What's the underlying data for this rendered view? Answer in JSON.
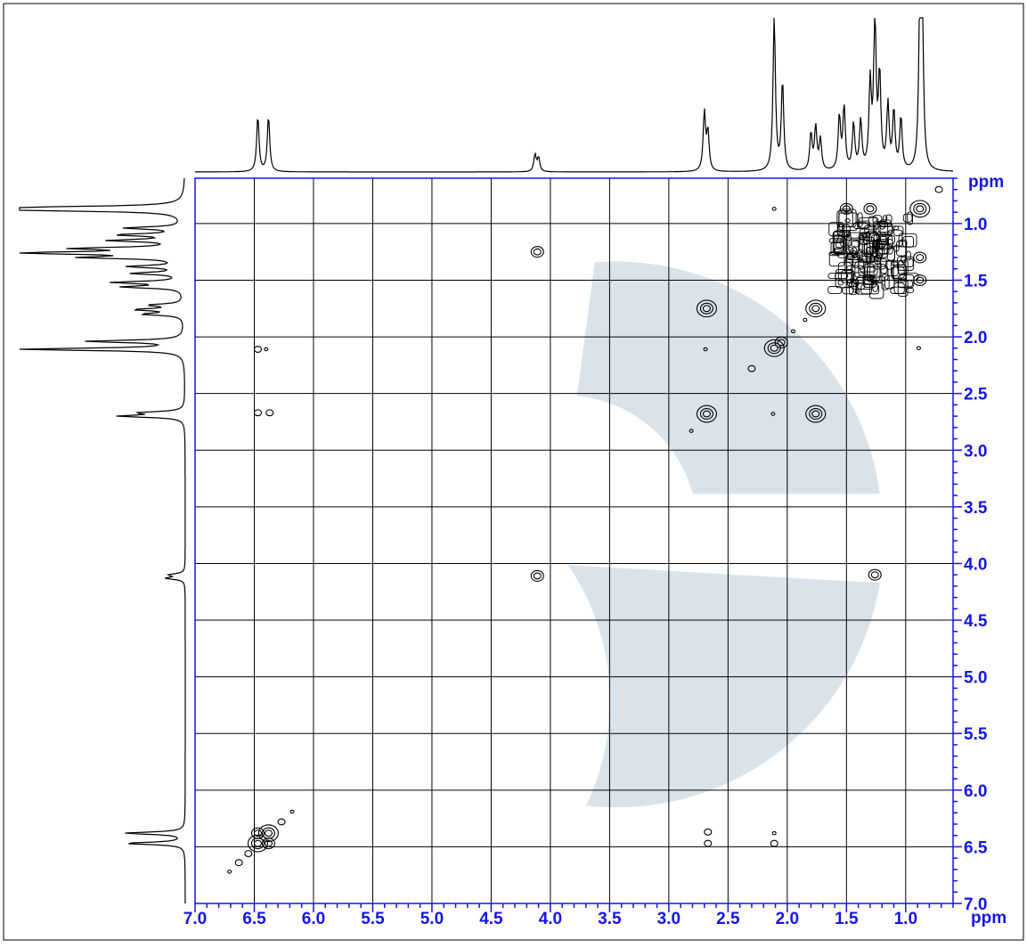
{
  "chart_data": {
    "type": "scatter",
    "title": "",
    "x_unit_label": "ppm",
    "y_unit_label": "ppm",
    "x_axis": {
      "range": [
        7.0,
        0.6
      ],
      "reversed": true,
      "ticks": [
        "7.0",
        "6.5",
        "6.0",
        "5.5",
        "5.0",
        "4.5",
        "4.0",
        "3.5",
        "3.0",
        "2.5",
        "2.0",
        "1.5",
        "1.0"
      ]
    },
    "y_axis": {
      "range": [
        0.6,
        7.0
      ],
      "reversed": true,
      "ticks": [
        "1.0",
        "1.5",
        "2.0",
        "2.5",
        "3.0",
        "3.5",
        "4.0",
        "4.5",
        "5.0",
        "5.5",
        "6.0",
        "6.5",
        "7.0"
      ]
    },
    "grid": true,
    "axis_color": "#1414e6",
    "watermark_colors": [
      "#dbe3ea",
      "#f8f4dc"
    ],
    "projection_peaks": [
      {
        "ppm": 6.47,
        "height": 0.36
      },
      {
        "ppm": 6.38,
        "height": 0.36
      },
      {
        "ppm": 4.13,
        "height": 0.11
      },
      {
        "ppm": 4.1,
        "height": 0.09
      },
      {
        "ppm": 2.7,
        "height": 0.38
      },
      {
        "ppm": 2.67,
        "height": 0.25
      },
      {
        "ppm": 2.11,
        "height": 1.0
      },
      {
        "ppm": 2.04,
        "height": 0.58
      },
      {
        "ppm": 1.8,
        "height": 0.24
      },
      {
        "ppm": 1.76,
        "height": 0.28
      },
      {
        "ppm": 1.72,
        "height": 0.2
      },
      {
        "ppm": 1.56,
        "height": 0.35
      },
      {
        "ppm": 1.52,
        "height": 0.41
      },
      {
        "ppm": 1.44,
        "height": 0.3
      },
      {
        "ppm": 1.38,
        "height": 0.32
      },
      {
        "ppm": 1.3,
        "height": 0.55
      },
      {
        "ppm": 1.26,
        "height": 1.0
      },
      {
        "ppm": 1.22,
        "height": 0.6
      },
      {
        "ppm": 1.15,
        "height": 0.42
      },
      {
        "ppm": 1.1,
        "height": 0.38
      },
      {
        "ppm": 1.04,
        "height": 0.34
      },
      {
        "ppm": 0.88,
        "height": 1.0
      },
      {
        "ppm": 0.86,
        "height": 0.95
      }
    ],
    "cross_peaks": [
      {
        "x": 6.47,
        "y": 6.47,
        "size": "large"
      },
      {
        "x": 6.38,
        "y": 6.38,
        "size": "large"
      },
      {
        "x": 6.47,
        "y": 6.38,
        "size": "medium"
      },
      {
        "x": 6.38,
        "y": 6.47,
        "size": "medium"
      },
      {
        "x": 6.27,
        "y": 6.28,
        "size": "small"
      },
      {
        "x": 6.18,
        "y": 6.19,
        "size": "tiny"
      },
      {
        "x": 6.55,
        "y": 6.56,
        "size": "small"
      },
      {
        "x": 6.63,
        "y": 6.64,
        "size": "small"
      },
      {
        "x": 6.71,
        "y": 6.72,
        "size": "tiny"
      },
      {
        "x": 6.47,
        "y": 2.11,
        "size": "small"
      },
      {
        "x": 6.4,
        "y": 2.11,
        "size": "tiny"
      },
      {
        "x": 6.47,
        "y": 2.67,
        "size": "small"
      },
      {
        "x": 6.37,
        "y": 2.67,
        "size": "small"
      },
      {
        "x": 2.67,
        "y": 6.37,
        "size": "small"
      },
      {
        "x": 2.67,
        "y": 6.47,
        "size": "small"
      },
      {
        "x": 2.11,
        "y": 6.38,
        "size": "tiny"
      },
      {
        "x": 2.11,
        "y": 6.47,
        "size": "small"
      },
      {
        "x": 4.11,
        "y": 1.25,
        "size": "medium"
      },
      {
        "x": 4.11,
        "y": 4.11,
        "size": "medium"
      },
      {
        "x": 1.26,
        "y": 4.1,
        "size": "medium"
      },
      {
        "x": 2.68,
        "y": 1.75,
        "size": "large"
      },
      {
        "x": 2.68,
        "y": 2.68,
        "size": "large"
      },
      {
        "x": 1.76,
        "y": 2.68,
        "size": "large"
      },
      {
        "x": 1.76,
        "y": 1.75,
        "size": "large"
      },
      {
        "x": 2.11,
        "y": 2.1,
        "size": "large"
      },
      {
        "x": 2.05,
        "y": 2.05,
        "size": "medium"
      },
      {
        "x": 2.3,
        "y": 2.28,
        "size": "small"
      },
      {
        "x": 2.69,
        "y": 2.11,
        "size": "tiny"
      },
      {
        "x": 2.81,
        "y": 2.83,
        "size": "tiny"
      },
      {
        "x": 2.12,
        "y": 2.68,
        "size": "tiny"
      },
      {
        "x": 1.95,
        "y": 1.95,
        "size": "tiny"
      },
      {
        "x": 1.85,
        "y": 1.85,
        "size": "tiny"
      },
      {
        "x": 0.88,
        "y": 0.87,
        "size": "large"
      },
      {
        "x": 0.72,
        "y": 0.7,
        "size": "small"
      },
      {
        "x": 1.3,
        "y": 0.87,
        "size": "medium"
      },
      {
        "x": 1.5,
        "y": 0.87,
        "size": "medium"
      },
      {
        "x": 0.88,
        "y": 1.3,
        "size": "medium"
      },
      {
        "x": 0.88,
        "y": 1.5,
        "size": "medium"
      },
      {
        "x": 2.11,
        "y": 0.87,
        "size": "tiny"
      },
      {
        "x": 0.89,
        "y": 2.1,
        "size": "tiny"
      }
    ],
    "dense_region": {
      "x": [
        1.6,
        0.95
      ],
      "y": [
        0.95,
        1.6
      ]
    }
  }
}
